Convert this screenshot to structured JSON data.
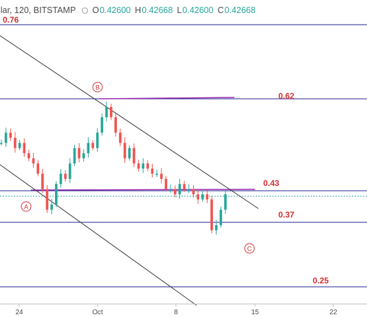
{
  "header": {
    "symbol": "llar, 120, BITSTAMP",
    "open_key": "O",
    "open": "0.42600",
    "high_key": "H",
    "high": "0.42668",
    "low_key": "L",
    "low": "0.42600",
    "close_key": "C",
    "close": "0.42668"
  },
  "chart_data": {
    "type": "candlestick",
    "title": "",
    "x_ticks": [
      "24",
      "Oct",
      "8",
      "15",
      "22"
    ],
    "horizontal_levels": [
      {
        "label": "0.76",
        "color": "#1f1f8f",
        "style": "solid"
      },
      {
        "label": "0.62",
        "color": "#1f1f8f",
        "style": "solid"
      },
      {
        "label": "0.43",
        "color": "#1f1f8f",
        "style": "solid"
      },
      {
        "label": "0.37",
        "color": "#1f1f8f",
        "style": "solid"
      },
      {
        "label": "0.25",
        "color": "#1f1f8f",
        "style": "solid"
      }
    ],
    "current_price_line": {
      "color": "#26a69a",
      "style": "dotted"
    },
    "wave_labels": [
      "A",
      "B",
      "C"
    ],
    "label_color": "#d32f2f",
    "up_color": "#26a69a",
    "down_color": "#ef5350",
    "x_axis_start": "2018-09-20",
    "price_range": [
      0.2,
      0.8
    ],
    "channel_color": "#333333",
    "resistance_color": "#9c27b0",
    "candle_trend": [
      0.53,
      0.55,
      0.54,
      0.52,
      0.53,
      0.51,
      0.5,
      0.49,
      0.47,
      0.44,
      0.4,
      0.41,
      0.45,
      0.47,
      0.46,
      0.49,
      0.52,
      0.5,
      0.51,
      0.53,
      0.52,
      0.55,
      0.58,
      0.6,
      0.58,
      0.55,
      0.53,
      0.5,
      0.52,
      0.49,
      0.48,
      0.49,
      0.48,
      0.47,
      0.47,
      0.46,
      0.44,
      0.44,
      0.43,
      0.45,
      0.44,
      0.44,
      0.43,
      0.42,
      0.43,
      0.42,
      0.36,
      0.37,
      0.4,
      0.43
    ]
  }
}
